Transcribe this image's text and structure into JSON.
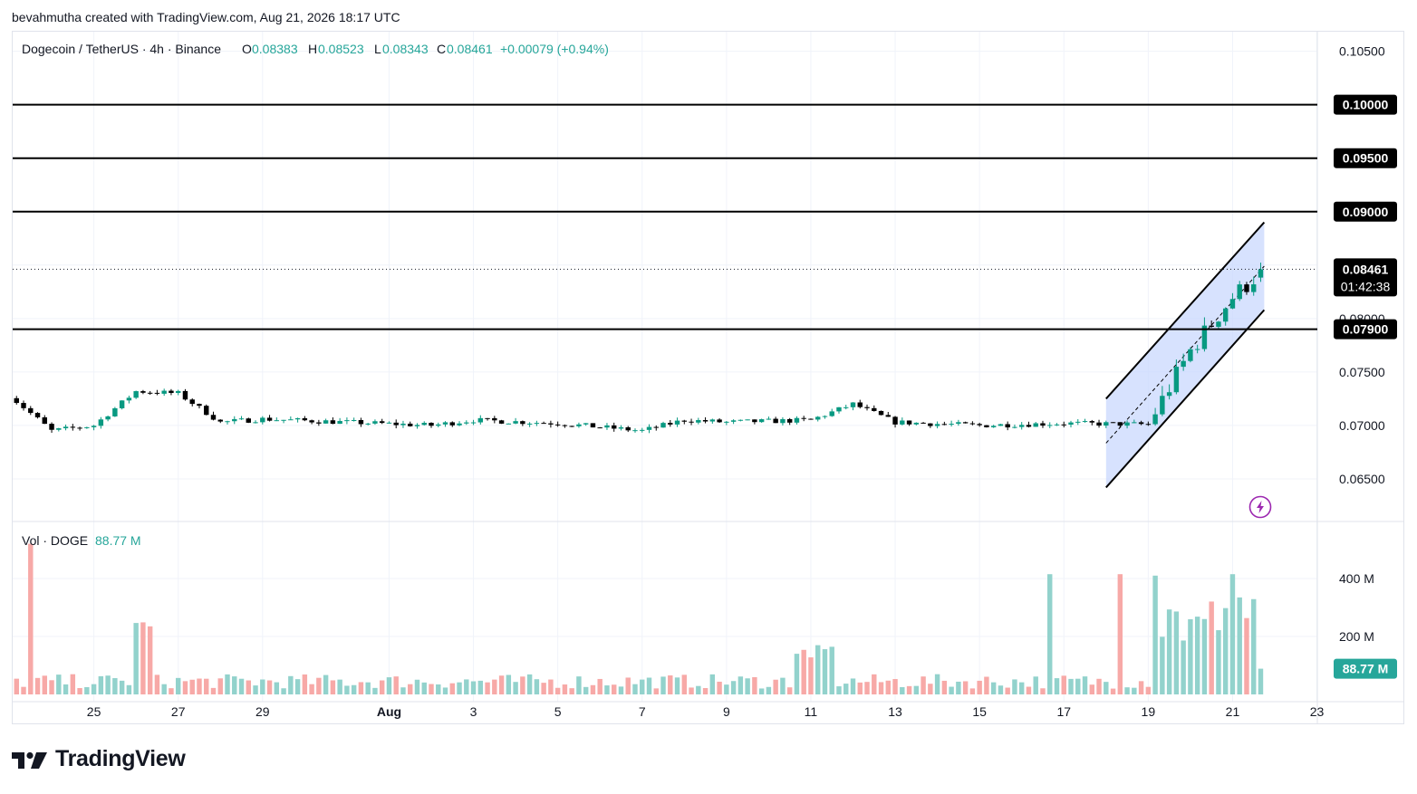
{
  "header": {
    "creator_line": "bevahmutha created with TradingView.com, Aug 21, 2026 18:17 UTC"
  },
  "legend": {
    "symbol": "Dogecoin / TetherUS · 4h · Binance",
    "o_label": "O",
    "o": "0.08383",
    "h_label": "H",
    "h": "0.08523",
    "l_label": "L",
    "l": "0.08343",
    "c_label": "C",
    "c": "0.08461",
    "change": "+0.00079 (+0.94%)"
  },
  "volume_legend": {
    "title": "Vol · DOGE",
    "value": "88.77 M"
  },
  "price_axis": {
    "ticks": [
      "0.10500",
      "0.07500",
      "0.07000",
      "0.06500"
    ],
    "level_labels": [
      "0.10000",
      "0.09500",
      "0.09000",
      "0.07900"
    ],
    "hidden_tick": "0.08000",
    "last_price": "0.08461",
    "countdown": "01:42:38"
  },
  "volume_axis": {
    "ticks": [
      "400 M",
      "200 M"
    ],
    "last_volume": "88.77 M"
  },
  "time_axis": {
    "labels": [
      "3",
      "25",
      "27",
      "29",
      "Aug",
      "3",
      "5",
      "7",
      "9",
      "11",
      "13",
      "15",
      "17",
      "19",
      "21",
      "23"
    ]
  },
  "brand": {
    "name": "TradingView"
  },
  "colors": {
    "up": "#26a69a",
    "down": "#ef5350",
    "candle_up_body": "#089981",
    "volume_up": "#92d2cc",
    "volume_down": "#f7a9a7",
    "channel_fill": "#c9d8fd",
    "level_line": "#000000",
    "volume_badge": "#26a69a",
    "alert_icon": "#9c27b0"
  },
  "chart_data": {
    "type": "candlestick",
    "timeframe": "4h",
    "price_range": [
      0.0617,
      0.1063
    ],
    "volume_range": [
      0,
      560
    ],
    "volume_unit": "M",
    "key_points": [
      {
        "x": "Jul 23",
        "close": 0.0728
      },
      {
        "x": "Jul 24",
        "close": 0.0695
      },
      {
        "x": "Jul 25",
        "close": 0.07
      },
      {
        "x": "Jul 26",
        "close": 0.0732
      },
      {
        "x": "Jul 27",
        "close": 0.073
      },
      {
        "x": "Jul 28",
        "close": 0.0703
      },
      {
        "x": "Jul 29",
        "close": 0.0706
      },
      {
        "x": "Jul 31",
        "close": 0.0703
      },
      {
        "x": "Aug 2",
        "close": 0.07
      },
      {
        "x": "Aug 3",
        "close": 0.0705
      },
      {
        "x": "Aug 5",
        "close": 0.0702
      },
      {
        "x": "Aug 7",
        "close": 0.0695
      },
      {
        "x": "Aug 8",
        "close": 0.0705
      },
      {
        "x": "Aug 9",
        "close": 0.0703
      },
      {
        "x": "Aug 11",
        "close": 0.0705
      },
      {
        "x": "Aug 12",
        "close": 0.072
      },
      {
        "x": "Aug 13",
        "close": 0.0703
      },
      {
        "x": "Aug 15",
        "close": 0.07
      },
      {
        "x": "Aug 17",
        "close": 0.0702
      },
      {
        "x": "Aug 19",
        "close": 0.0701
      },
      {
        "x": "Aug 20",
        "close": 0.077
      },
      {
        "x": "Aug 21",
        "close": 0.082
      },
      {
        "x": "Aug 21 18:00",
        "close": 0.08461
      }
    ],
    "last_candle": {
      "open": 0.08383,
      "high": 0.08523,
      "low": 0.08343,
      "close": 0.08461
    },
    "horizontal_levels": [
      0.1,
      0.095,
      0.09,
      0.079
    ],
    "channel": {
      "start": "Aug 18",
      "end": "Aug 21 18:00",
      "upper": [
        0.0725,
        0.089
      ],
      "lower": [
        0.0642,
        0.0808
      ]
    },
    "volume_peaks_M": [
      520,
      415,
      415,
      410,
      415
    ],
    "last_volume_M": 88.77
  }
}
